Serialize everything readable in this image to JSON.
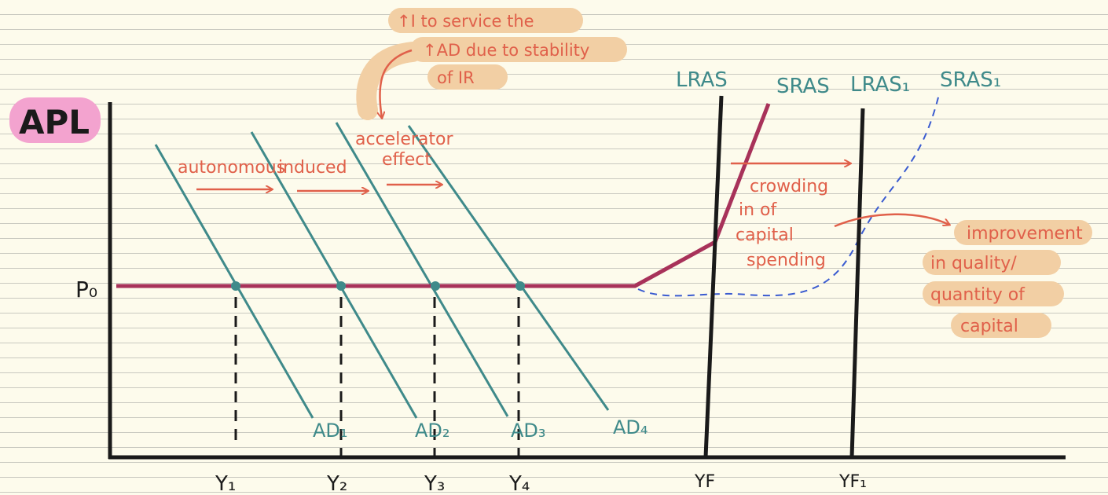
{
  "title": "APL",
  "price_label": "P₀",
  "ad_labels": [
    "AD₁",
    "AD₂",
    "AD₃",
    "AD₄"
  ],
  "output_labels": [
    "Y₁",
    "Y₂",
    "Y₃",
    "Y₄",
    "YF",
    "YF₁"
  ],
  "supply_labels": {
    "lras": "LRAS",
    "sras": "SRAS",
    "lras1": "LRAS₁",
    "sras1": "SRAS₁"
  },
  "shift_notes": {
    "first": "autonomous",
    "second": "induced",
    "third_line1": "accelerator",
    "third_line2": "effect"
  },
  "top_note": [
    "↑I to service the",
    "↑AD due to stability",
    "of IR"
  ],
  "crowding_note": [
    "crowding",
    "in of",
    "capital",
    "spending"
  ],
  "improvement_note": [
    "improvement",
    "in quality/",
    "quantity of",
    "capital"
  ],
  "colors": {
    "teal": "#3f8a8a",
    "coral": "#e0604a",
    "maroon": "#a8325a",
    "blue_dashed": "#3a5bd0",
    "highlight": "#f2cfa4",
    "title_bg": "#f3a3cf"
  }
}
